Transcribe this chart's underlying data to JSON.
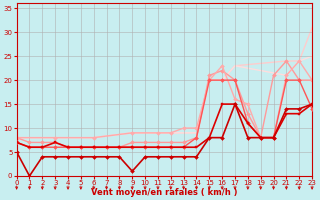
{
  "title": "",
  "xlabel": "Vent moyen/en rafales ( km/h )",
  "ylabel": "",
  "bg_color": "#c8eef0",
  "grid_color": "#b0b0b0",
  "xlim": [
    0,
    23
  ],
  "ylim": [
    0,
    36
  ],
  "xticks": [
    0,
    1,
    2,
    3,
    4,
    5,
    6,
    7,
    8,
    9,
    10,
    11,
    12,
    13,
    14,
    15,
    16,
    17,
    18,
    19,
    20,
    21,
    22,
    23
  ],
  "yticks": [
    0,
    5,
    10,
    15,
    20,
    25,
    30,
    35
  ],
  "lines": [
    {
      "x": [
        0,
        1,
        2,
        3,
        4,
        5,
        6,
        7,
        8,
        9,
        10,
        11,
        12,
        13,
        14,
        15,
        16,
        17,
        18,
        19,
        20,
        21,
        22,
        23
      ],
      "y": [
        5,
        0,
        4,
        4,
        4,
        4,
        4,
        4,
        4,
        1,
        4,
        4,
        4,
        4,
        4,
        8,
        8,
        15,
        8,
        8,
        8,
        14,
        14,
        15
      ],
      "color": "#cc0000",
      "lw": 1.2,
      "marker": "D",
      "ms": 2.0,
      "zorder": 5
    },
    {
      "x": [
        0,
        1,
        2,
        3,
        4,
        5,
        6,
        7,
        8,
        9,
        10,
        11,
        12,
        13,
        14,
        15,
        16,
        17,
        18,
        19,
        20,
        21,
        22,
        23
      ],
      "y": [
        7,
        6,
        6,
        7,
        6,
        6,
        6,
        6,
        6,
        6,
        6,
        6,
        6,
        6,
        6,
        8,
        15,
        15,
        11,
        8,
        8,
        13,
        13,
        15
      ],
      "color": "#dd0000",
      "lw": 1.2,
      "marker": "s",
      "ms": 2.0,
      "zorder": 4
    },
    {
      "x": [
        0,
        1,
        2,
        3,
        4,
        5,
        6,
        7,
        8,
        9,
        10,
        11,
        12,
        13,
        14,
        15,
        16,
        17,
        18,
        19,
        20,
        21,
        22,
        23
      ],
      "y": [
        7,
        6,
        6,
        6,
        6,
        6,
        6,
        6,
        6,
        6,
        6,
        6,
        6,
        6,
        8,
        20,
        20,
        20,
        11,
        8,
        8,
        20,
        20,
        14
      ],
      "color": "#ff5555",
      "lw": 1.0,
      "marker": "D",
      "ms": 2.0,
      "zorder": 3
    },
    {
      "x": [
        0,
        1,
        2,
        3,
        4,
        5,
        6,
        7,
        8,
        9,
        10,
        11,
        12,
        13,
        14,
        15,
        16,
        17,
        18,
        19,
        20,
        21,
        22,
        23
      ],
      "y": [
        8,
        7,
        7,
        7,
        6,
        6,
        6,
        6,
        6,
        7,
        7,
        7,
        7,
        7,
        8,
        21,
        22,
        20,
        13,
        8,
        21,
        24,
        20,
        20
      ],
      "color": "#ff9999",
      "lw": 1.0,
      "marker": "D",
      "ms": 2.0,
      "zorder": 2
    },
    {
      "x": [
        0,
        3,
        6,
        9,
        11,
        12,
        13,
        14,
        15,
        16,
        17,
        18,
        19,
        20,
        21,
        22,
        23
      ],
      "y": [
        8,
        8,
        8,
        9,
        9,
        9,
        10,
        10,
        20,
        23,
        16,
        15,
        8,
        8,
        21,
        24,
        20
      ],
      "color": "#ffaaaa",
      "lw": 1.0,
      "marker": "D",
      "ms": 2.0,
      "zorder": 2
    },
    {
      "x": [
        0,
        6,
        9,
        12,
        14,
        15,
        16,
        17,
        21,
        22,
        23
      ],
      "y": [
        8,
        8,
        9,
        9,
        9,
        20,
        20,
        23,
        24,
        24,
        31
      ],
      "color": "#ffcccc",
      "lw": 1.0,
      "marker": null,
      "ms": 0,
      "zorder": 1
    },
    {
      "x": [
        0,
        6,
        9,
        12,
        14,
        15,
        16,
        17,
        21,
        22,
        23
      ],
      "y": [
        8,
        8,
        9,
        9,
        9,
        20,
        20,
        23,
        21,
        24,
        25
      ],
      "color": "#ffdddd",
      "lw": 1.0,
      "marker": null,
      "ms": 0,
      "zorder": 1
    }
  ],
  "arrow_color": "#cc0000"
}
